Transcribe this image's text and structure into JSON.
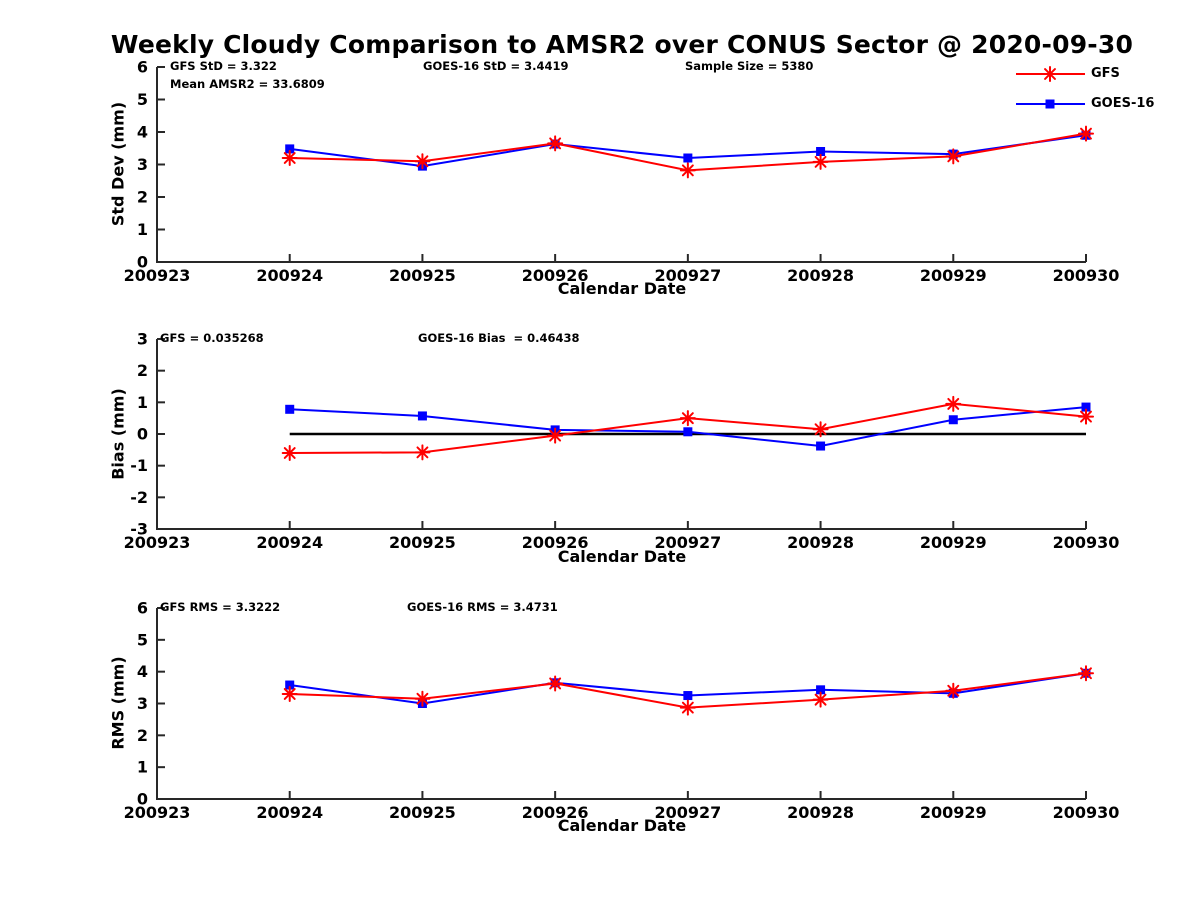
{
  "title": "Weekly Cloudy Comparison to AMSR2 over CONUS Sector @ 2020-09-30",
  "legend": [
    {
      "label": "GFS",
      "color": "#ff0000",
      "marker": "asterisk"
    },
    {
      "label": "GOES-16",
      "color": "#0000ff",
      "marker": "square"
    }
  ],
  "colors": {
    "gfs": "#ff0000",
    "goes16": "#0000ff",
    "axis": "#282828",
    "zero_line": "#000000",
    "background": "#ffffff"
  },
  "chart_data": [
    {
      "id": "std-dev",
      "type": "line",
      "ylabel": "Std Dev (mm)",
      "xlabel": "Calendar Date",
      "ylim": [
        0,
        6
      ],
      "y_ticks": [
        0,
        1,
        2,
        3,
        4,
        5,
        6
      ],
      "x_ticks": [
        "200923",
        "200924",
        "200925",
        "200926",
        "200927",
        "200928",
        "200929",
        "200930"
      ],
      "categories": [
        "200924",
        "200925",
        "200926",
        "200927",
        "200928",
        "200929",
        "200930"
      ],
      "grid": false,
      "series": [
        {
          "name": "GOES-16",
          "color": "#0000ff",
          "marker": "square",
          "values": [
            3.48,
            2.95,
            3.63,
            3.2,
            3.4,
            3.32,
            3.9
          ]
        },
        {
          "name": "GFS",
          "color": "#ff0000",
          "marker": "asterisk",
          "values": [
            3.2,
            3.1,
            3.65,
            2.82,
            3.08,
            3.25,
            3.95
          ]
        }
      ],
      "annotations": [
        "GFS StD = 3.322",
        "Mean AMSR2 = 33.6809",
        "GOES-16 StD = 3.4419",
        "Sample Size = 5380"
      ],
      "stats": {
        "gfs_std": 3.322,
        "mean_amsr2": 33.6809,
        "goes16_std": 3.4419,
        "sample_size": 5380
      }
    },
    {
      "id": "bias",
      "type": "line",
      "ylabel": "Bias (mm)",
      "xlabel": "Calendar Date",
      "ylim": [
        -3,
        3
      ],
      "y_ticks": [
        -3,
        -2,
        -1,
        0,
        1,
        2,
        3
      ],
      "x_ticks": [
        "200923",
        "200924",
        "200925",
        "200926",
        "200927",
        "200928",
        "200929",
        "200930"
      ],
      "categories": [
        "200924",
        "200925",
        "200926",
        "200927",
        "200928",
        "200929",
        "200930"
      ],
      "grid": false,
      "zero_line": true,
      "series": [
        {
          "name": "GOES-16",
          "color": "#0000ff",
          "marker": "square",
          "values": [
            0.78,
            0.57,
            0.13,
            0.07,
            -0.38,
            0.45,
            0.85
          ]
        },
        {
          "name": "GFS",
          "color": "#ff0000",
          "marker": "asterisk",
          "values": [
            -0.6,
            -0.58,
            -0.05,
            0.5,
            0.15,
            0.95,
            0.55
          ]
        }
      ],
      "annotations": [
        "GFS = 0.035268",
        "GOES-16 Bias  = 0.46438"
      ],
      "stats": {
        "gfs_bias": 0.035268,
        "goes16_bias": 0.46438
      }
    },
    {
      "id": "rms",
      "type": "line",
      "ylabel": "RMS (mm)",
      "xlabel": "Calendar Date",
      "ylim": [
        0,
        6
      ],
      "y_ticks": [
        0,
        1,
        2,
        3,
        4,
        5,
        6
      ],
      "x_ticks": [
        "200923",
        "200924",
        "200925",
        "200926",
        "200927",
        "200928",
        "200929",
        "200930"
      ],
      "categories": [
        "200924",
        "200925",
        "200926",
        "200927",
        "200928",
        "200929",
        "200930"
      ],
      "grid": false,
      "series": [
        {
          "name": "GOES-16",
          "color": "#0000ff",
          "marker": "square",
          "values": [
            3.58,
            3.0,
            3.65,
            3.25,
            3.43,
            3.32,
            3.95
          ]
        },
        {
          "name": "GFS",
          "color": "#ff0000",
          "marker": "asterisk",
          "values": [
            3.3,
            3.15,
            3.63,
            2.87,
            3.12,
            3.4,
            3.95
          ]
        }
      ],
      "annotations": [
        "GFS RMS = 3.3222",
        "GOES-16 RMS = 3.4731"
      ],
      "stats": {
        "gfs_rms": 3.3222,
        "goes16_rms": 3.4731
      }
    }
  ]
}
